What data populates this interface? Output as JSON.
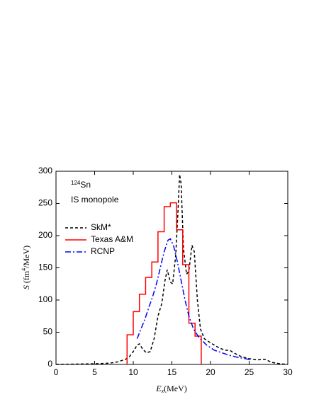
{
  "chart_data": {
    "type": "line",
    "isotope_mass": "124",
    "isotope_symbol": "Sn",
    "annotation": "IS monopole",
    "xlabel": {
      "main": "E",
      "sub": "x",
      "unit": "(MeV)"
    },
    "ylabel": {
      "main": "S",
      "unit_start": "(fm",
      "sup": "4",
      "unit_end": "/MeV)"
    },
    "xlim": [
      0,
      30
    ],
    "xticks": [
      0,
      5,
      10,
      15,
      20,
      25,
      30
    ],
    "ylim": [
      0,
      300
    ],
    "yticks": [
      0,
      50,
      100,
      150,
      200,
      250,
      300
    ],
    "series": [
      {
        "name": "SkM*",
        "color": "#000000",
        "style": "dashed",
        "x": [
          0,
          5,
          7,
          8,
          9,
          9.5,
          10,
          10.5,
          10.8,
          11.2,
          11.7,
          12.2,
          12.7,
          13.2,
          13.7,
          14.1,
          14.4,
          14.8,
          15.1,
          15.5,
          15.8,
          16.0,
          16.2,
          16.5,
          16.9,
          17.2,
          17.6,
          17.9,
          18.3,
          18.7,
          19.2,
          19.8,
          20.5,
          21.2,
          22,
          22.5,
          23,
          24,
          25,
          26,
          27,
          28,
          29,
          30
        ],
        "values": [
          0,
          1,
          2,
          4,
          8,
          12,
          20,
          30,
          32,
          24,
          18,
          20,
          40,
          75,
          95,
          130,
          147,
          128,
          125,
          170,
          240,
          295,
          280,
          180,
          140,
          145,
          185,
          175,
          100,
          55,
          40,
          35,
          30,
          25,
          22,
          22,
          18,
          12,
          9,
          7,
          8,
          3,
          1,
          0
        ]
      },
      {
        "name": "Texas A&M",
        "color": "#ff0000",
        "style": "step",
        "bins": [
          9.2,
          10,
          10.8,
          11.6,
          12.4,
          13.2,
          14,
          14.8,
          15.6,
          16.4,
          17.2,
          18,
          18.8
        ],
        "values": [
          46,
          82,
          109,
          135,
          159,
          206,
          245,
          251,
          209,
          155,
          64,
          44
        ]
      },
      {
        "name": "RCNP",
        "color": "#0000ff",
        "style": "dashdot",
        "x": [
          10.5,
          11,
          11.5,
          12,
          12.5,
          13,
          13.5,
          14,
          14.5,
          14.8,
          15.2,
          15.7,
          16.2,
          16.7,
          17.2,
          17.8,
          18.5,
          19.5,
          20.5,
          21.5,
          22.5,
          23.5,
          24.5,
          25.2
        ],
        "values": [
          40,
          55,
          70,
          88,
          105,
          125,
          150,
          175,
          193,
          195,
          185,
          160,
          130,
          100,
          75,
          55,
          42,
          30,
          22,
          18,
          14,
          11,
          9,
          7
        ]
      }
    ]
  }
}
